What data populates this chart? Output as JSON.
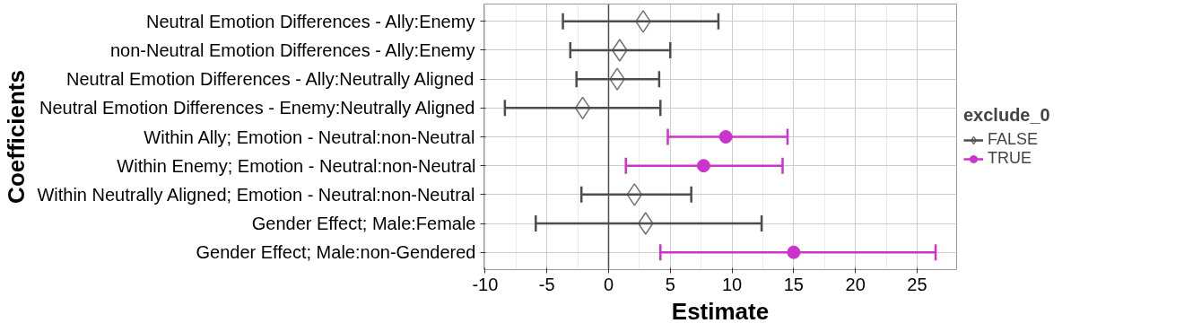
{
  "chart_data": {
    "type": "scatter",
    "orientation": "horizontal",
    "xlabel": "Estimate",
    "ylabel": "Coefficients",
    "legend_title": "exclude_0",
    "legend": "right",
    "grid": true,
    "categories": [
      "Neutral Emotion Differences - Ally:Enemy",
      "non-Neutral Emotion Differences - Ally:Enemy",
      "Neutral Emotion Differences - Ally:Neutrally Aligned",
      "Neutral Emotion Differences - Enemy:Neutrally Aligned",
      "Within Ally; Emotion - Neutral:non-Neutral",
      "Within Enemy; Emotion - Neutral:non-Neutral",
      "Within Neutrally Aligned; Emotion - Neutral:non-Neutral",
      "Gender Effect; Male:Female",
      "Gender Effect; Male:non-Gendered"
    ],
    "series": [
      {
        "name": "FALSE",
        "color": "#4d4d4d",
        "marker": "diamond",
        "values": [
          2.8,
          0.9,
          0.7,
          -2.1,
          null,
          null,
          2.1,
          3.0,
          null
        ],
        "errors": [
          [
            -3.7,
            8.9
          ],
          [
            -3.1,
            5.0
          ],
          [
            -2.6,
            4.1
          ],
          [
            -8.4,
            4.2
          ],
          null,
          null,
          [
            -2.2,
            6.7
          ],
          [
            -5.9,
            12.4
          ],
          null
        ]
      },
      {
        "name": "TRUE",
        "color": "#cc33cc",
        "marker": "circle",
        "values": [
          null,
          null,
          null,
          null,
          9.5,
          7.7,
          null,
          null,
          15.0
        ],
        "errors": [
          null,
          null,
          null,
          null,
          [
            4.8,
            14.5
          ],
          [
            1.4,
            14.1
          ],
          null,
          null,
          [
            4.2,
            26.5
          ]
        ]
      }
    ],
    "xlim": [
      -10.1,
      28.2
    ],
    "xticks": [
      -10,
      -5,
      0,
      5,
      10,
      15,
      20,
      25
    ],
    "ref_lines": [
      {
        "axis": "x",
        "value": 0,
        "color": "#4d4d4d"
      }
    ]
  }
}
